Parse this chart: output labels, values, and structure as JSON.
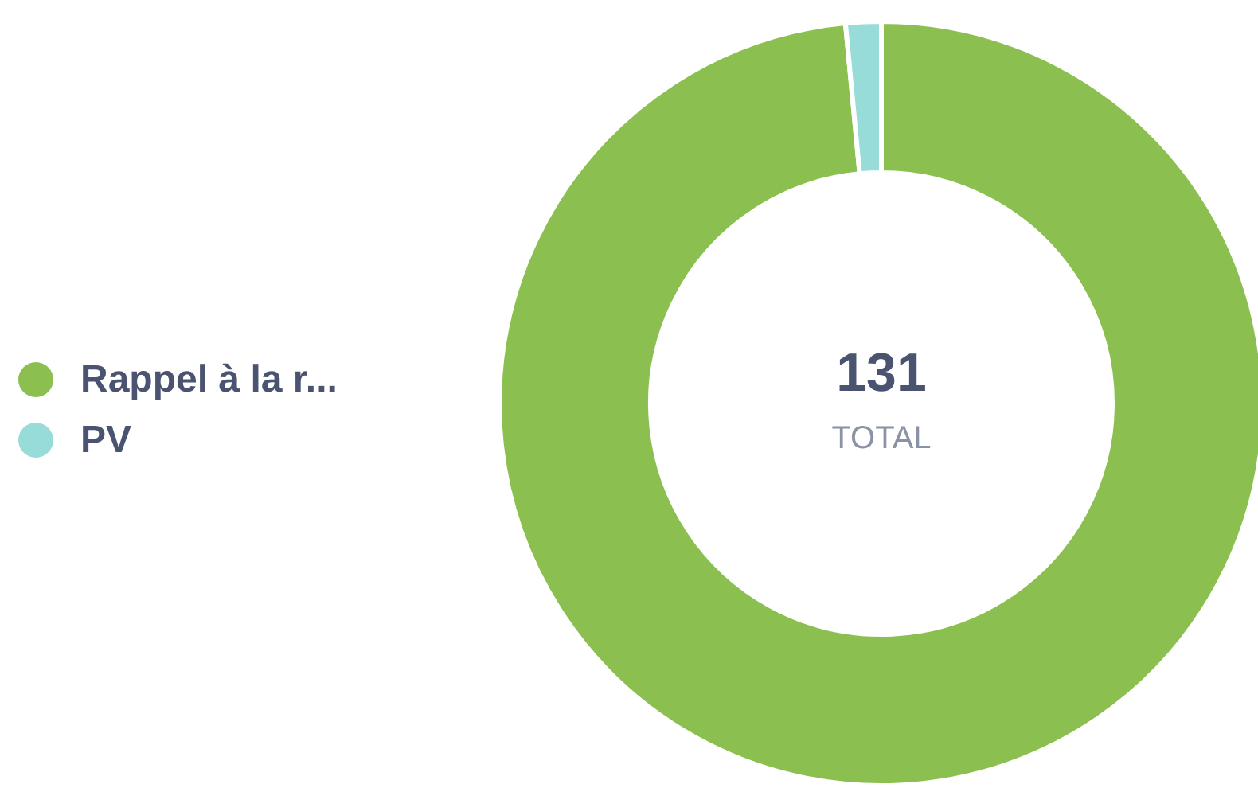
{
  "chart_data": {
    "type": "donut",
    "categories": [
      "Rappel à la r...",
      "PV"
    ],
    "values": [
      98.5,
      1.5
    ],
    "colors": [
      "#8bbf4f",
      "#97dcd9"
    ],
    "annotations": [
      "131",
      "TOTAL"
    ],
    "legend": "left"
  }
}
